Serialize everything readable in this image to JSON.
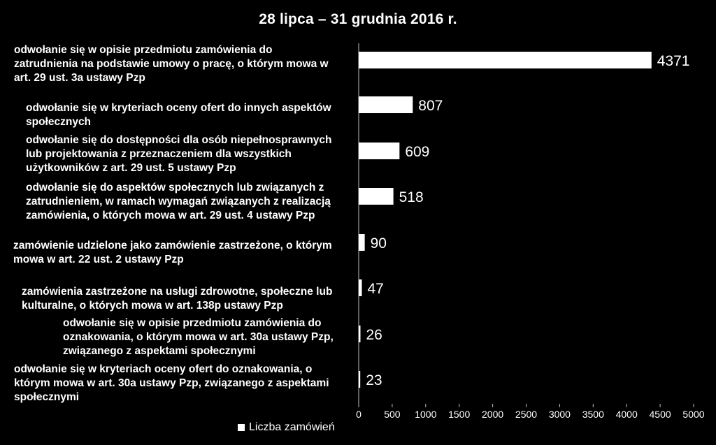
{
  "chart_data": {
    "type": "bar",
    "orientation": "horizontal",
    "title": "28 lipca – 31 grudnia 2016 r.",
    "categories": [
      "odwołanie się w opisie przedmiotu zamówienia do\nzatrudnienia na podstawie umowy o pracę, o którym mowa w\nart. 29 ust. 3a ustawy Pzp",
      "odwołanie się w kryteriach oceny ofert do innych aspektów\nspołecznych",
      "odwołanie się do dostępności dla osób niepełnosprawnych\nlub projektowania z przeznaczeniem dla wszystkich\nużytkowników z art. 29 ust. 5 ustawy Pzp",
      "odwołanie się do aspektów społecznych lub związanych z\nzatrudnieniem, w ramach wymagań związanych z realizacją\nzamówienia, o których mowa w art. 29 ust. 4 ustawy Pzp",
      "zamówienie udzielone jako zamówienie zastrzeżone, o którym\nmowa w art. 22 ust. 2 ustawy Pzp",
      "zamówienia zastrzeżone na usługi zdrowotne, społeczne lub\nkulturalne, o których mowa w art. 138p ustawy Pzp",
      "odwołanie się w opisie przedmiotu zamówienia do\noznakowania, o którym mowa w art. 30a ustawy Pzp,\nzwiązanego z aspektami społecznymi",
      "odwołanie się w kryteriach oceny ofert do oznakowania, o\nktórym mowa w art. 30a ustawy Pzp, związanego z aspektami\nspołecznymi"
    ],
    "series": [
      {
        "name": "Liczba zamówień",
        "values": [
          4371,
          807,
          609,
          518,
          90,
          47,
          26,
          23
        ]
      }
    ],
    "xlim": [
      0,
      5000
    ],
    "xticks": [
      "0",
      "500",
      "1000",
      "1500",
      "2000",
      "2500",
      "3000",
      "3500",
      "4000",
      "4500",
      "5000"
    ],
    "grid": false,
    "legend_position": "bottom-left",
    "colors": {
      "background": "#000000",
      "bar": "#ffffff",
      "text": "#ffffff"
    }
  }
}
